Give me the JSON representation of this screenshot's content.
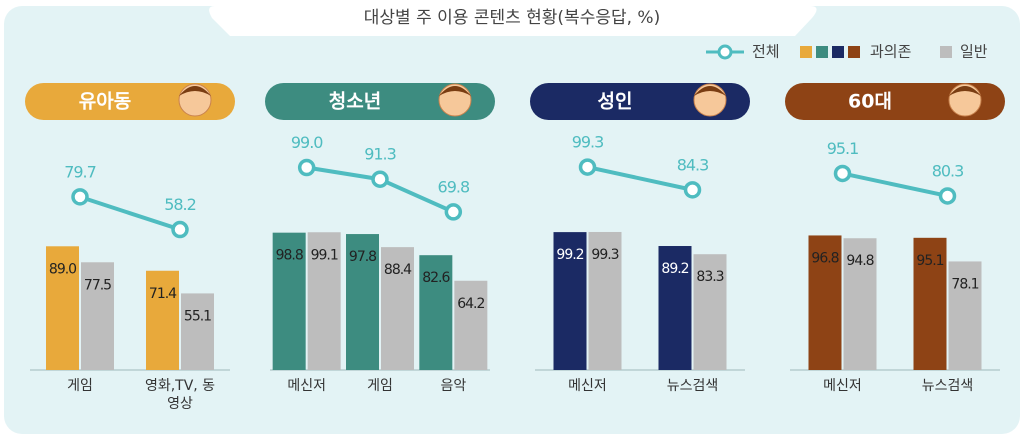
{
  "title": "대상별 주 이용 콘텐츠 현황(복수응답, %)",
  "legend": {
    "total": "전체",
    "addicted": "과의존",
    "general": "일반"
  },
  "chart_data": [
    {
      "type": "bar",
      "title": "유아동",
      "categories": [
        "게임",
        "영화,TV, 동영상"
      ],
      "series": [
        {
          "color": "#e8a93b",
          "values": [
            89.0,
            71.4
          ],
          "value_labels": [
            "89.0",
            "71.4"
          ]
        },
        {
          "color": "#bdbdbd",
          "values": [
            77.5,
            55.1
          ],
          "value_labels": [
            "77.5",
            "55.1"
          ]
        }
      ],
      "total": {
        "color": "#4fbcc0",
        "values": [
          79.7,
          58.2
        ],
        "value_labels": [
          "79.7",
          "58.2"
        ]
      },
      "ylim": [
        0,
        100
      ],
      "y2lim": [
        0,
        100
      ]
    },
    {
      "type": "bar",
      "title": "청소년",
      "categories": [
        "메신저",
        "게임",
        "음악"
      ],
      "series": [
        {
          "color": "#3d8c80",
          "values": [
            98.8,
            97.8,
            82.6
          ],
          "value_labels": [
            "98.8",
            "97.8",
            "82.6"
          ]
        },
        {
          "color": "#bdbdbd",
          "values": [
            99.1,
            88.4,
            64.2
          ],
          "value_labels": [
            "99.1",
            "88.4",
            "64.2"
          ]
        }
      ],
      "total": {
        "color": "#4fbcc0",
        "values": [
          99.0,
          91.3,
          69.8
        ],
        "value_labels": [
          "99.0",
          "91.3",
          "69.8"
        ]
      },
      "ylim": [
        0,
        100
      ],
      "y2lim": [
        0,
        100
      ]
    },
    {
      "type": "bar",
      "title": "성인",
      "categories": [
        "메신저",
        "뉴스검색"
      ],
      "series": [
        {
          "color": "#1b2a64",
          "values": [
            99.2,
            89.2
          ],
          "value_labels": [
            "99.2",
            "89.2"
          ]
        },
        {
          "color": "#bdbdbd",
          "values": [
            99.3,
            83.3
          ],
          "value_labels": [
            "99.3",
            "83.3"
          ]
        }
      ],
      "total": {
        "color": "#4fbcc0",
        "values": [
          99.3,
          84.3
        ],
        "value_labels": [
          "99.3",
          "84.3"
        ]
      },
      "ylim": [
        0,
        100
      ],
      "y2lim": [
        0,
        100
      ]
    },
    {
      "type": "bar",
      "title": "60대",
      "categories": [
        "메신저",
        "뉴스검색"
      ],
      "series": [
        {
          "color": "#8e4315",
          "values": [
            96.8,
            95.1
          ],
          "value_labels": [
            "96.8",
            "95.1"
          ]
        },
        {
          "color": "#bdbdbd",
          "values": [
            94.8,
            78.1
          ],
          "value_labels": [
            "94.8",
            "78.1"
          ]
        }
      ],
      "total": {
        "color": "#4fbcc0",
        "values": [
          95.1,
          80.3
        ],
        "value_labels": [
          "95.1",
          "80.3"
        ]
      },
      "ylim": [
        0,
        100
      ],
      "y2lim": [
        0,
        100
      ]
    }
  ]
}
